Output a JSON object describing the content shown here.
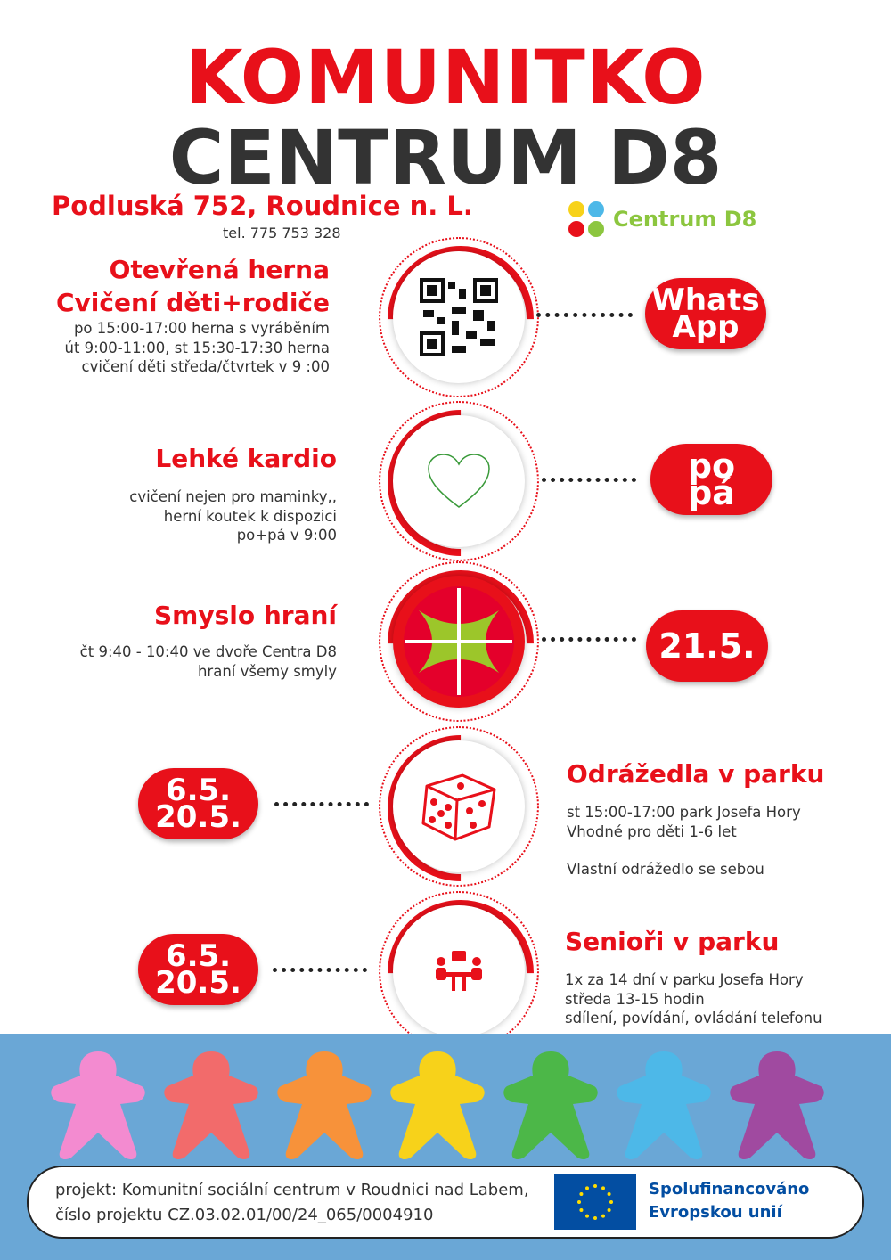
{
  "header": {
    "title_line1": "KOMUNITKO",
    "title_line2": "CENTRUM D8",
    "address": "Podluská 752, Roudnice n. L.",
    "phone": "tel. 775 753 328",
    "logo_text": "Centrum D8"
  },
  "events": [
    {
      "title": "Otevřená herna",
      "title2": "Cvičení děti+rodiče",
      "lines": [
        "po 15:00-17:00 herna s vyráběním",
        "út 9:00-11:00, st 15:30-17:30 herna",
        "cvičení děti středa/čtvrtek v 9 :00"
      ],
      "icon": "qr-code-icon",
      "pill": [
        "Whats",
        "App"
      ]
    },
    {
      "title": "Lehké kardio",
      "lines": [
        "cvičení nejen pro maminky,,",
        "herní koutek k dispozici",
        "po+pá v 9:00"
      ],
      "icon": "heart-icon",
      "pill": [
        "po",
        "pá"
      ]
    },
    {
      "title": "Smyslo hraní",
      "lines": [
        "čt 9:40 - 10:40 ve dvoře Centra D8",
        "hraní všemy smyly"
      ],
      "icon": "ball-icon",
      "pill": [
        "21.5."
      ]
    },
    {
      "title": "Odrážedla v parku",
      "lines": [
        "st 15:00-17:00 park Josefa Hory",
        "Vhodné pro děti 1-6 let",
        "",
        "Vlastní odrážedlo se sebou"
      ],
      "icon": "dice-icon",
      "pill": [
        "6.5.",
        "20.5."
      ]
    },
    {
      "title": "Senioři v parku",
      "lines": [
        "1x za 14 dní v parku Josefa Hory",
        "středa 13-15 hodin",
        "sdílení, povídání, ovládání telefonu"
      ],
      "icon": "people-icon",
      "pill": [
        "6.5.",
        "20.5."
      ]
    }
  ],
  "footer": {
    "project": "projekt: Komunitní sociální centrum v Roudnici nad Labem,",
    "number": "číslo projektu CZ.03.02.01/00/24_065/0004910",
    "eu_line1": "Spolufinancováno",
    "eu_line2": "Evropskou unií"
  },
  "colors": {
    "accent": "#e8101a",
    "dark": "#333333",
    "eu_blue": "#034ea2",
    "logo_green": "#8cc63f"
  },
  "meeple_colors": [
    "#f38bd0",
    "#f26b6b",
    "#f7923a",
    "#f7d21a",
    "#4cb748",
    "#4db8e8",
    "#a04aa0"
  ]
}
